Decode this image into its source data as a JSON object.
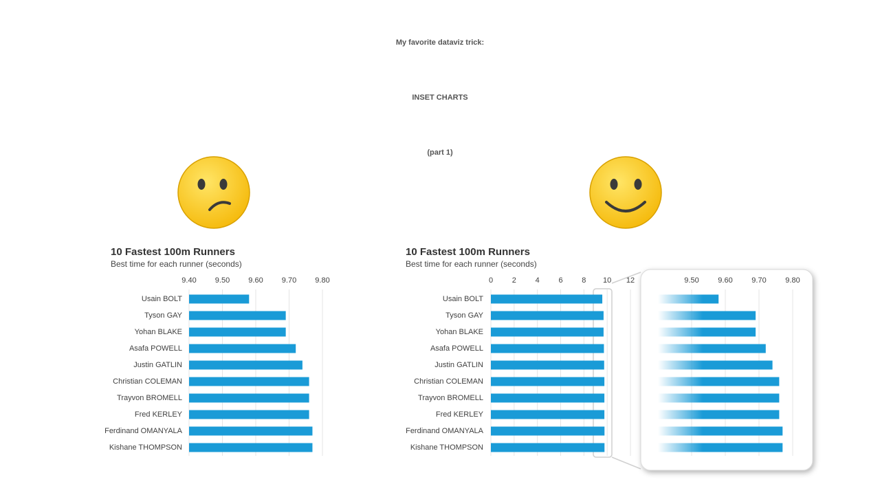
{
  "header": {
    "line1": "My favorite dataviz trick:",
    "line2": "INSET CHARTS",
    "line3": "(part 1)"
  },
  "chart_data": [
    {
      "type": "bar",
      "orientation": "horizontal",
      "title": "10 Fastest 100m Runners",
      "subtitle": "Best time for each runner (seconds)",
      "categories": [
        "Usain BOLT",
        "Tyson GAY",
        "Yohan BLAKE",
        "Asafa POWELL",
        "Justin GATLIN",
        "Christian COLEMAN",
        "Trayvon BROMELL",
        "Fred KERLEY",
        "Ferdinand OMANYALA",
        "Kishane THOMPSON"
      ],
      "values": [
        9.58,
        9.69,
        9.69,
        9.72,
        9.74,
        9.76,
        9.76,
        9.76,
        9.77,
        9.77
      ],
      "color": "#1a9bd7",
      "xlim": [
        9.4,
        9.8
      ],
      "xticks": [
        {
          "value": 9.4,
          "label": "9.40"
        },
        {
          "value": 9.5,
          "label": "9.50"
        },
        {
          "value": 9.6,
          "label": "9.60"
        },
        {
          "value": 9.7,
          "label": "9.70"
        },
        {
          "value": 9.8,
          "label": "9.80"
        }
      ],
      "grid": true
    },
    {
      "type": "bar",
      "orientation": "horizontal",
      "title": "10 Fastest 100m Runners",
      "subtitle": "Best time for each runner (seconds)",
      "categories": [
        "Usain BOLT",
        "Tyson GAY",
        "Yohan BLAKE",
        "Asafa POWELL",
        "Justin GATLIN",
        "Christian COLEMAN",
        "Trayvon BROMELL",
        "Fred KERLEY",
        "Ferdinand OMANYALA",
        "Kishane THOMPSON"
      ],
      "values": [
        9.58,
        9.69,
        9.69,
        9.72,
        9.74,
        9.76,
        9.76,
        9.76,
        9.77,
        9.77
      ],
      "color": "#1a9bd7",
      "xlim": [
        0,
        12
      ],
      "xticks": [
        0,
        2,
        4,
        6,
        8,
        10,
        12
      ],
      "grid": true,
      "inset": {
        "xlim": [
          9.4,
          9.84
        ],
        "xticks": [
          {
            "value": 9.5,
            "label": "9.50"
          },
          {
            "value": 9.6,
            "label": "9.60"
          },
          {
            "value": 9.7,
            "label": "9.70"
          },
          {
            "value": 9.8,
            "label": "9.80"
          }
        ]
      }
    }
  ]
}
